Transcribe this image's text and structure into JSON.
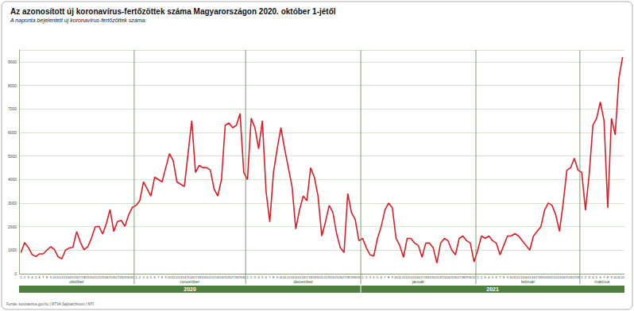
{
  "chart_data": {
    "type": "line",
    "title": "Az azonosított új koronavírus-fertőzöttek száma Magyarországon 2020. október 1-jétől",
    "subtitle": "A naponta bejelentett új koronavírus-fertőzöttek száma:",
    "source": "Forrás: koronavirus.gov.hu | MTVA Sajtóarchívum | MTI",
    "categories": [
      "1",
      "2",
      "3",
      "4",
      "5",
      "6",
      "7",
      "8",
      "9",
      "10",
      "11",
      "12",
      "13",
      "14",
      "15",
      "16",
      "17",
      "18",
      "19",
      "20",
      "21",
      "22",
      "23",
      "24",
      "25",
      "26",
      "27",
      "28",
      "29",
      "30",
      "31",
      "1",
      "2",
      "3",
      "4",
      "5",
      "6",
      "7",
      "8",
      "9",
      "10",
      "11",
      "12",
      "13",
      "14",
      "15",
      "16",
      "17",
      "18",
      "19",
      "20",
      "21",
      "22",
      "23",
      "24",
      "25",
      "26",
      "27",
      "28",
      "29",
      "30",
      "1",
      "2",
      "3",
      "4",
      "5",
      "6",
      "7",
      "8",
      "9",
      "10",
      "11",
      "12",
      "13",
      "14",
      "15",
      "16",
      "17",
      "18",
      "19",
      "20",
      "21",
      "22",
      "23",
      "24",
      "25",
      "26",
      "27",
      "28",
      "29",
      "30",
      "31",
      "1",
      "2",
      "3",
      "4",
      "5",
      "6",
      "7",
      "8",
      "9",
      "10",
      "11",
      "12",
      "13",
      "14",
      "15",
      "16",
      "17",
      "18",
      "19",
      "20",
      "21",
      "22",
      "23",
      "24",
      "25",
      "26",
      "27",
      "28",
      "29",
      "30",
      "31",
      "1",
      "2",
      "3",
      "4",
      "5",
      "6",
      "7",
      "8",
      "9",
      "10",
      "11",
      "12",
      "13",
      "14",
      "15",
      "16",
      "17",
      "18",
      "19",
      "20",
      "21",
      "22",
      "23",
      "24",
      "25",
      "26",
      "27",
      "28",
      "1",
      "2",
      "3",
      "4",
      "5",
      "6",
      "7",
      "8",
      "9",
      "10",
      "11",
      "12"
    ],
    "months": [
      {
        "name": "október",
        "year": "2020"
      },
      {
        "name": "november",
        "year": "2020"
      },
      {
        "name": "december",
        "year": "2020"
      },
      {
        "name": "január",
        "year": "2021"
      },
      {
        "name": "február",
        "year": "2021"
      },
      {
        "name": "március",
        "year": "2021"
      }
    ],
    "values": [
      890,
      1322,
      1112,
      812,
      729,
      843,
      841,
      1001,
      1146,
      1030,
      723,
      632,
      1003,
      1092,
      1121,
      1791,
      1337,
      1016,
      1147,
      1512,
      1989,
      2014,
      1685,
      2120,
      2728,
      1792,
      2218,
      2265,
      2013,
      2496,
      2814,
      2900,
      3100,
      3900,
      3600,
      3300,
      4100,
      4000,
      3900,
      4500,
      5100,
      4800,
      3900,
      3800,
      3700,
      5100,
      6500,
      4300,
      4600,
      4500,
      4500,
      4400,
      3600,
      3300,
      4000,
      6300,
      6400,
      6200,
      6300,
      6800,
      4300,
      4000,
      6600,
      6200,
      5300,
      6500,
      3500,
      2200,
      4300,
      5300,
      6200,
      5300,
      4500,
      3700,
      1900,
      2700,
      3300,
      3100,
      4500,
      4100,
      3300,
      1600,
      2200,
      2900,
      2600,
      1700,
      1100,
      900,
      3400,
      2600,
      2300,
      1400,
      1500,
      1100,
      800,
      750,
      1500,
      2000,
      2700,
      3000,
      2800,
      1500,
      1200,
      700,
      1500,
      1500,
      1300,
      1200,
      700,
      1300,
      1300,
      1100,
      450,
      1300,
      1500,
      1400,
      1000,
      800,
      1500,
      1600,
      1400,
      1300,
      500,
      1000,
      1600,
      1500,
      1600,
      1400,
      1300,
      800,
      1200,
      1600,
      1600,
      1700,
      1600,
      1400,
      1200,
      1000,
      1600,
      1800,
      2000,
      2700,
      3000,
      2900,
      2500,
      1800,
      3000,
      4400,
      4500,
      4900,
      4400,
      4300,
      2700,
      4200,
      6300,
      6600,
      7300,
      6500,
      2800,
      6600,
      5900,
      8300,
      9200
    ],
    "color": "#e01b24",
    "ylim": [
      0,
      9500
    ],
    "yticks": [
      0,
      1000,
      2000,
      3000,
      4000,
      5000,
      6000,
      7000,
      8000,
      9000
    ],
    "grid": true
  }
}
